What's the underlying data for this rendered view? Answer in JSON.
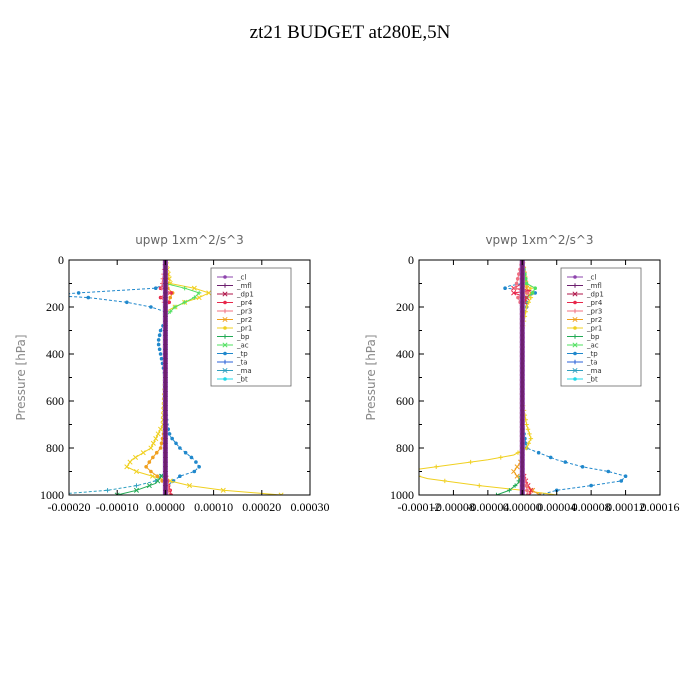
{
  "figure": {
    "title": "zt21  BUDGET at280E,5N"
  },
  "colors": {
    "_cl": "#8e44ad",
    "_mfl": "#6c1f6e",
    "_dp1": "#b0164a",
    "_pr4": "#e8274b",
    "_pr3": "#f07080",
    "_pr2": "#f0a020",
    "_pr1": "#f0d020",
    "_bp": "#22aa55",
    "_ac": "#50e060",
    "_tp": "#2088cc",
    "_ta": "#2a60d8",
    "_ma": "#30a0c0",
    "_bt": "#20d8e8"
  },
  "chart_data": [
    {
      "type": "line",
      "title": "upwp   1xm^2/s^3",
      "ylabel": "Pressure [hPa]",
      "ylim": [
        1000,
        0
      ],
      "xlim": [
        -0.0002,
        0.0003
      ],
      "x_ticks": [
        "-0.00020",
        "-0.00010",
        "0.00000",
        "0.00010",
        "0.00020",
        "0.00030"
      ],
      "y_ticks": [
        "0",
        "200",
        "400",
        "600",
        "800",
        "1000"
      ],
      "legend": [
        "_cl",
        "_mfl",
        "_dp1",
        "_pr4",
        "_pr3",
        "_pr2",
        "_pr1",
        "_bp",
        "_ac",
        "_tp",
        "_ta",
        "_ma",
        "_bt"
      ],
      "legend_position": "top-right",
      "series": [
        {
          "name": "_tp",
          "color": "#2088cc",
          "p": [
            0,
            100,
            120,
            140,
            150,
            160,
            180,
            200,
            220,
            260,
            300,
            350,
            400,
            500,
            600,
            700,
            750,
            800,
            850,
            880,
            900,
            920,
            950,
            980,
            1000
          ],
          "x": [
            0,
            0,
            -2e-05,
            -0.00018,
            -0.00024,
            -0.00016,
            -8e-05,
            -3e-05,
            0,
            0,
            -1e-05,
            -1.5e-05,
            -1e-05,
            0,
            0,
            3e-06,
            1e-05,
            3e-05,
            6e-05,
            7e-05,
            6e-05,
            3e-05,
            1e-05,
            0,
            0
          ]
        },
        {
          "name": "_ma",
          "color": "#30a0c0",
          "p": [
            0,
            900,
            940,
            960,
            980,
            990,
            1000
          ],
          "x": [
            0,
            0,
            -2e-05,
            -6e-05,
            -0.00012,
            -0.00018,
            -0.00024
          ]
        },
        {
          "name": "_pr1",
          "color": "#f0d020",
          "p": [
            0,
            100,
            120,
            140,
            160,
            180,
            200,
            220,
            300,
            500,
            700,
            800,
            850,
            880,
            900,
            930,
            960,
            980,
            990,
            1000
          ],
          "x": [
            0,
            1e-05,
            6e-05,
            9e-05,
            7e-05,
            4e-05,
            2e-05,
            0,
            0,
            0,
            -5e-06,
            -3e-05,
            -7e-05,
            -8e-05,
            -6e-05,
            -1e-05,
            5e-05,
            0.00012,
            0.00018,
            0.00024
          ]
        },
        {
          "name": "_pr2",
          "color": "#f0a020",
          "p": [
            0,
            120,
            140,
            160,
            200,
            700,
            800,
            850,
            880,
            900,
            930,
            960,
            1000
          ],
          "x": [
            0,
            5e-06,
            1.5e-05,
            1e-05,
            0,
            0,
            -1e-05,
            -3e-05,
            -4e-05,
            -3e-05,
            -1e-05,
            0,
            1e-05
          ]
        },
        {
          "name": "_ac",
          "color": "#50e060",
          "p": [
            0,
            100,
            120,
            140,
            160,
            180,
            200,
            240,
            300,
            950,
            1000
          ],
          "x": [
            0,
            0,
            4e-05,
            7e-05,
            6e-05,
            4e-05,
            2e-05,
            0,
            0,
            0,
            0
          ]
        },
        {
          "name": "_bp",
          "color": "#22aa55",
          "p": [
            0,
            900,
            950,
            980,
            1000
          ],
          "x": [
            0,
            0,
            -2e-05,
            -6e-05,
            -0.0001
          ]
        },
        {
          "name": "_pr4",
          "color": "#e8274b",
          "p": [
            0,
            100,
            120,
            140,
            160,
            180,
            200,
            300,
            900,
            950,
            980,
            1000
          ],
          "x": [
            0,
            0,
            -1e-05,
            1.2e-05,
            -1e-05,
            8e-06,
            0,
            0,
            0,
            5e-06,
            1e-05,
            1.2e-05
          ]
        },
        {
          "name": "_pr3",
          "color": "#f07080",
          "p": [
            0,
            120,
            140,
            160,
            200,
            900,
            960,
            1000
          ],
          "x": [
            0,
            -8e-06,
            6e-06,
            -6e-06,
            0,
            0,
            6e-06,
            8e-06
          ]
        },
        {
          "name": "_dp1",
          "color": "#b0164a",
          "p": [
            0,
            1000
          ],
          "x": [
            0,
            0
          ]
        },
        {
          "name": "_cl",
          "color": "#8e44ad",
          "p": [
            0,
            1000
          ],
          "x": [
            0,
            0
          ]
        },
        {
          "name": "_mfl",
          "color": "#6c1f6e",
          "p": [
            0,
            1000
          ],
          "x": [
            0,
            0
          ]
        }
      ]
    },
    {
      "type": "line",
      "title": "vpwp   1xm^2/s^3",
      "ylabel": "Pressure [hPa]",
      "ylim": [
        1000,
        0
      ],
      "xlim": [
        -0.00012,
        0.00016
      ],
      "x_ticks": [
        "-0.00012",
        "-0.00008",
        "-0.00004",
        "0.00000",
        "0.00004",
        "0.00008",
        "0.00012",
        "0.00016"
      ],
      "y_ticks": [
        "0",
        "200",
        "400",
        "600",
        "800",
        "1000"
      ],
      "legend": [
        "_cl",
        "_mfl",
        "_dp1",
        "_pr4",
        "_pr3",
        "_pr2",
        "_pr1",
        "_bp",
        "_ac",
        "_tp",
        "_ta",
        "_ma",
        "_bt"
      ],
      "legend_position": "top-right",
      "series": [
        {
          "name": "_tp",
          "color": "#2088cc",
          "p": [
            0,
            100,
            110,
            120,
            130,
            140,
            160,
            200,
            240,
            300,
            700,
            800,
            850,
            880,
            900,
            920,
            940,
            960,
            980,
            1000
          ],
          "x": [
            0,
            0,
            -1.5e-05,
            -2e-05,
            1e-05,
            1.5e-05,
            5e-06,
            5e-06,
            0,
            0,
            0,
            5e-06,
            4e-05,
            7e-05,
            0.0001,
            0.00012,
            0.000115,
            8e-05,
            4e-05,
            2e-05
          ]
        },
        {
          "name": "_pr1",
          "color": "#f0d020",
          "p": [
            0,
            100,
            120,
            140,
            160,
            200,
            300,
            600,
            700,
            760,
            800,
            830,
            850,
            880,
            900,
            930,
            960,
            980,
            1000
          ],
          "x": [
            0,
            0,
            1e-05,
            5e-06,
            1e-05,
            5e-06,
            0,
            0,
            5e-06,
            1e-05,
            5e-06,
            -1e-05,
            -4e-05,
            -0.0001,
            -0.00014,
            -0.00011,
            -5e-05,
            0,
            4e-05
          ]
        },
        {
          "name": "_pr2",
          "color": "#f0a020",
          "p": [
            0,
            120,
            140,
            160,
            200,
            850,
            900,
            950,
            1000
          ],
          "x": [
            0,
            5e-06,
            1e-05,
            5e-06,
            0,
            0,
            -1e-05,
            0,
            2e-05
          ]
        },
        {
          "name": "_ac",
          "color": "#50e060",
          "p": [
            0,
            100,
            120,
            140,
            160,
            200,
            300,
            1000
          ],
          "x": [
            0,
            5e-06,
            1.5e-05,
            1.2e-05,
            5e-06,
            0,
            0,
            0
          ]
        },
        {
          "name": "_bp",
          "color": "#22aa55",
          "p": [
            0,
            900,
            950,
            980,
            1000
          ],
          "x": [
            0,
            0,
            -5e-06,
            -1.5e-05,
            -3e-05
          ]
        },
        {
          "name": "_pr4",
          "color": "#e8274b",
          "p": [
            0,
            100,
            120,
            130,
            140,
            160,
            200,
            300,
            900,
            950,
            980,
            1000
          ],
          "x": [
            0,
            0,
            -1e-05,
            1e-05,
            -1e-05,
            5e-06,
            0,
            0,
            0,
            5e-06,
            1e-05,
            8e-06
          ]
        },
        {
          "name": "_pr3",
          "color": "#f07080",
          "p": [
            0,
            120,
            140,
            160,
            200,
            900,
            960,
            1000
          ],
          "x": [
            0,
            -8e-06,
            6e-06,
            -5e-06,
            0,
            0,
            5e-06,
            6e-06
          ]
        },
        {
          "name": "_dp1",
          "color": "#b0164a",
          "p": [
            0,
            1000
          ],
          "x": [
            0,
            0
          ]
        },
        {
          "name": "_cl",
          "color": "#8e44ad",
          "p": [
            0,
            1000
          ],
          "x": [
            0,
            0
          ]
        },
        {
          "name": "_mfl",
          "color": "#6c1f6e",
          "p": [
            0,
            1000
          ],
          "x": [
            0,
            0
          ]
        }
      ]
    }
  ]
}
